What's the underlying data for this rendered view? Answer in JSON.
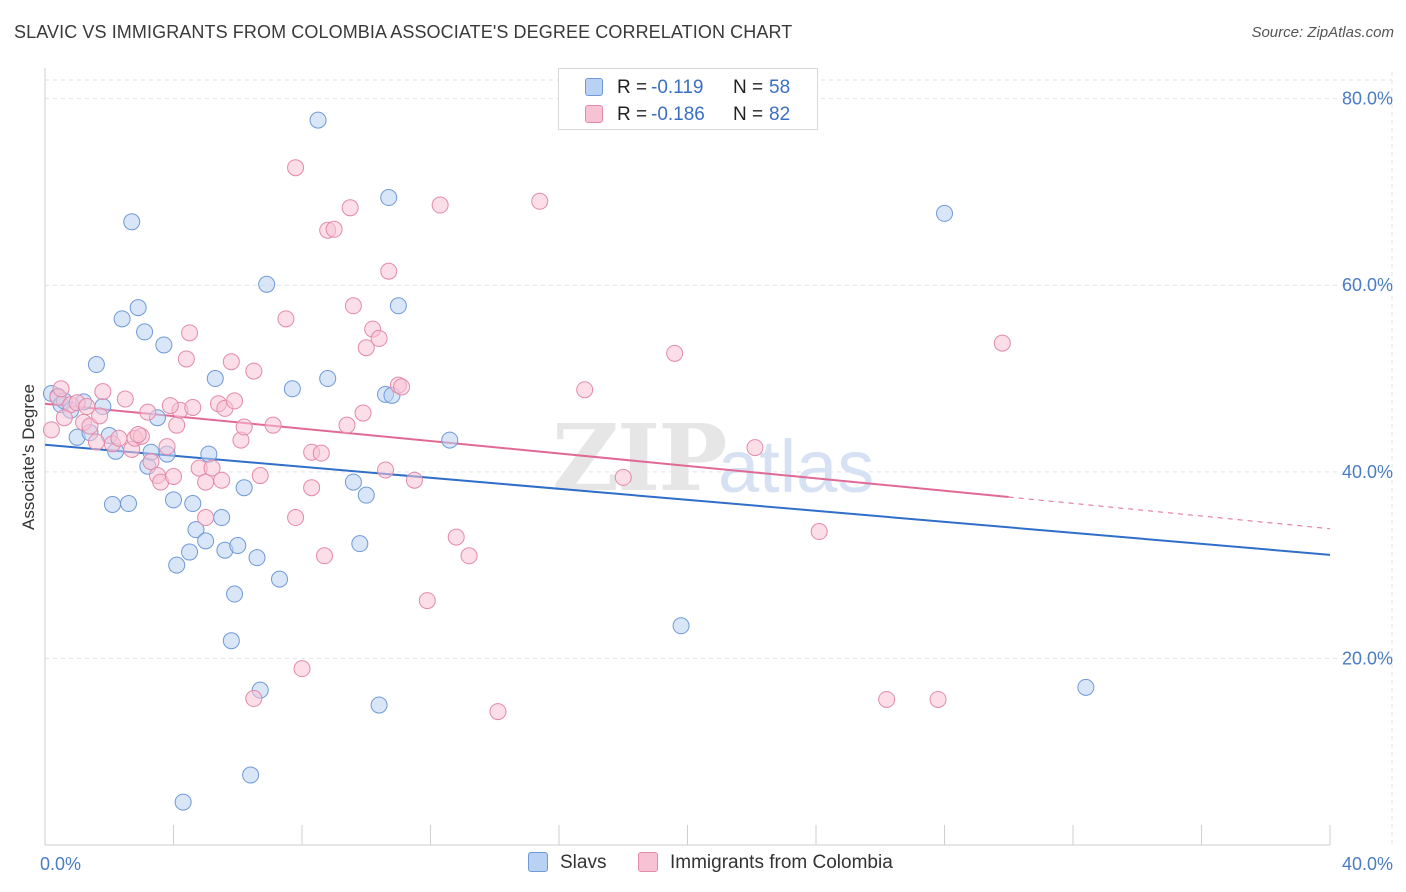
{
  "title": "SLAVIC VS IMMIGRANTS FROM COLOMBIA ASSOCIATE'S DEGREE CORRELATION CHART",
  "source": "Source: ZipAtlas.com",
  "watermark": {
    "zip": "ZIP",
    "atlas": "atlas"
  },
  "legend": {
    "rows": [
      {
        "r_label": "R =",
        "r_value": "-0.119",
        "n_label": "N =",
        "n_value": "58"
      },
      {
        "r_label": "R =",
        "r_value": "-0.186",
        "n_label": "N =",
        "n_value": "82"
      }
    ]
  },
  "colors": {
    "slavs_fill": "#b9d1f2",
    "slavs_stroke": "#6f9ad8",
    "slavs_line": "#2f6fc9",
    "colombia_fill": "#f7c3d4",
    "colombia_stroke": "#e48aa9",
    "colombia_line": "#e06a95",
    "tick": "#4a7cc7",
    "grid": "#e3e3e3"
  },
  "chart_data": {
    "type": "scatter",
    "title": "SLAVIC VS IMMIGRANTS FROM COLOMBIA ASSOCIATE'S DEGREE CORRELATION CHART",
    "xlabel": "",
    "ylabel": "Associate's Degree",
    "xlim": [
      0,
      40
    ],
    "ylim": [
      0,
      82
    ],
    "x_ticks": [
      {
        "value": 0,
        "label": "0.0%"
      },
      {
        "value": 40,
        "label": "40.0%"
      }
    ],
    "y_ticks": [
      {
        "value": 20,
        "label": "20.0%"
      },
      {
        "value": 40,
        "label": "40.0%"
      },
      {
        "value": 60,
        "label": "60.0%"
      },
      {
        "value": 80,
        "label": "80.0%"
      }
    ],
    "legend": [
      "Slavs",
      "Immigrants from Colombia"
    ],
    "series": [
      {
        "name": "Slavs",
        "r": -0.119,
        "n": 58,
        "trend": {
          "x": [
            0,
            40
          ],
          "y": [
            42.9,
            31.1
          ]
        },
        "points": [
          [
            0.2,
            48.4
          ],
          [
            0.4,
            48.1
          ],
          [
            0.5,
            47.2
          ],
          [
            0.6,
            47.6
          ],
          [
            0.8,
            46.6
          ],
          [
            1.0,
            43.7
          ],
          [
            1.2,
            47.5
          ],
          [
            1.4,
            44.2
          ],
          [
            1.6,
            51.5
          ],
          [
            1.8,
            47.0
          ],
          [
            2.0,
            43.9
          ],
          [
            2.1,
            36.5
          ],
          [
            2.2,
            42.2
          ],
          [
            2.4,
            56.4
          ],
          [
            2.6,
            36.6
          ],
          [
            2.7,
            66.8
          ],
          [
            2.9,
            57.6
          ],
          [
            3.1,
            55.0
          ],
          [
            3.2,
            40.6
          ],
          [
            3.3,
            42.1
          ],
          [
            3.5,
            45.8
          ],
          [
            3.7,
            53.6
          ],
          [
            3.8,
            41.9
          ],
          [
            4.0,
            37.0
          ],
          [
            4.1,
            30.0
          ],
          [
            4.3,
            4.6
          ],
          [
            4.5,
            31.4
          ],
          [
            4.6,
            36.6
          ],
          [
            4.7,
            33.8
          ],
          [
            5.0,
            32.6
          ],
          [
            5.1,
            41.9
          ],
          [
            5.3,
            50.0
          ],
          [
            5.5,
            35.1
          ],
          [
            5.6,
            31.6
          ],
          [
            5.8,
            21.9
          ],
          [
            5.9,
            26.9
          ],
          [
            6.0,
            32.1
          ],
          [
            6.2,
            38.3
          ],
          [
            6.4,
            7.5
          ],
          [
            6.6,
            30.8
          ],
          [
            6.7,
            16.6
          ],
          [
            6.9,
            60.1
          ],
          [
            7.3,
            28.5
          ],
          [
            7.7,
            48.9
          ],
          [
            8.5,
            77.7
          ],
          [
            8.8,
            50.0
          ],
          [
            9.6,
            38.9
          ],
          [
            9.8,
            32.3
          ],
          [
            10.0,
            37.5
          ],
          [
            10.4,
            15.0
          ],
          [
            10.6,
            48.3
          ],
          [
            10.7,
            69.4
          ],
          [
            10.8,
            48.2
          ],
          [
            11.0,
            57.8
          ],
          [
            12.6,
            43.4
          ],
          [
            19.8,
            23.5
          ],
          [
            28.0,
            67.7
          ],
          [
            32.4,
            16.9
          ]
        ]
      },
      {
        "name": "Immigrants from Colombia",
        "r": -0.186,
        "n": 82,
        "trend": {
          "x": [
            0,
            30
          ],
          "y": [
            47.3,
            37.3
          ]
        },
        "trend_dashed": {
          "x": [
            30,
            40
          ],
          "y": [
            37.3,
            33.9
          ]
        },
        "points": [
          [
            0.2,
            44.5
          ],
          [
            0.4,
            48.0
          ],
          [
            0.5,
            48.9
          ],
          [
            0.8,
            47.2
          ],
          [
            1.0,
            47.4
          ],
          [
            1.2,
            45.3
          ],
          [
            1.4,
            44.9
          ],
          [
            1.6,
            43.2
          ],
          [
            1.7,
            46.0
          ],
          [
            1.8,
            48.6
          ],
          [
            2.1,
            43.0
          ],
          [
            2.3,
            43.6
          ],
          [
            2.5,
            47.8
          ],
          [
            2.7,
            42.4
          ],
          [
            2.8,
            43.6
          ],
          [
            3.0,
            43.8
          ],
          [
            3.2,
            46.4
          ],
          [
            3.3,
            41.1
          ],
          [
            3.5,
            39.6
          ],
          [
            3.6,
            38.9
          ],
          [
            3.8,
            42.7
          ],
          [
            4.0,
            39.5
          ],
          [
            4.1,
            45.0
          ],
          [
            4.2,
            46.6
          ],
          [
            4.4,
            52.1
          ],
          [
            4.5,
            54.9
          ],
          [
            4.6,
            46.9
          ],
          [
            4.8,
            40.4
          ],
          [
            5.0,
            38.9
          ],
          [
            5.0,
            35.1
          ],
          [
            5.2,
            40.4
          ],
          [
            5.4,
            47.3
          ],
          [
            5.5,
            39.1
          ],
          [
            5.6,
            46.8
          ],
          [
            5.8,
            51.8
          ],
          [
            5.9,
            47.6
          ],
          [
            6.1,
            43.4
          ],
          [
            6.2,
            44.8
          ],
          [
            6.5,
            15.7
          ],
          [
            6.5,
            50.8
          ],
          [
            6.7,
            39.6
          ],
          [
            7.1,
            45.0
          ],
          [
            7.5,
            56.4
          ],
          [
            7.8,
            35.1
          ],
          [
            7.8,
            72.6
          ],
          [
            8.0,
            18.9
          ],
          [
            8.3,
            38.3
          ],
          [
            8.3,
            42.1
          ],
          [
            8.6,
            42.0
          ],
          [
            8.7,
            31.0
          ],
          [
            8.8,
            65.9
          ],
          [
            9.0,
            66.0
          ],
          [
            9.4,
            45.0
          ],
          [
            9.5,
            68.3
          ],
          [
            9.6,
            57.8
          ],
          [
            9.9,
            46.3
          ],
          [
            10.0,
            53.3
          ],
          [
            10.2,
            55.3
          ],
          [
            10.4,
            54.3
          ],
          [
            10.6,
            40.2
          ],
          [
            10.7,
            61.5
          ],
          [
            11.0,
            49.3
          ],
          [
            11.1,
            49.1
          ],
          [
            11.5,
            39.1
          ],
          [
            11.9,
            26.2
          ],
          [
            12.3,
            68.6
          ],
          [
            12.8,
            33.0
          ],
          [
            13.2,
            31.0
          ],
          [
            14.1,
            14.3
          ],
          [
            15.4,
            69.0
          ],
          [
            16.8,
            48.8
          ],
          [
            18.0,
            39.4
          ],
          [
            19.6,
            52.7
          ],
          [
            22.1,
            42.6
          ],
          [
            24.1,
            33.6
          ],
          [
            26.2,
            15.6
          ],
          [
            27.8,
            15.6
          ],
          [
            29.8,
            53.8
          ],
          [
            3.9,
            47.1
          ],
          [
            0.6,
            45.8
          ],
          [
            1.3,
            47.0
          ],
          [
            2.9,
            44.0
          ]
        ]
      }
    ]
  }
}
